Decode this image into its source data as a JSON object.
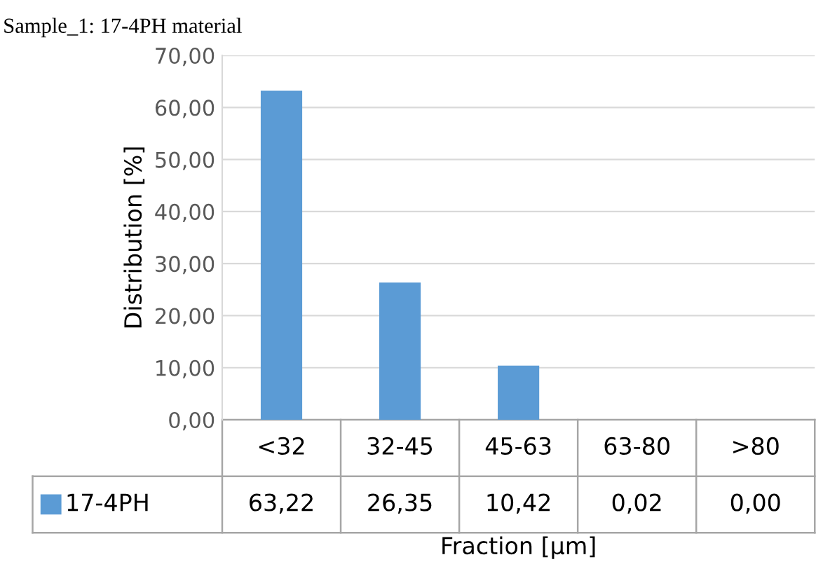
{
  "chart_data": {
    "type": "bar",
    "title": "Sample_1: 17-4PH material",
    "xlabel": "Fraction [µm]",
    "ylabel": "Distribution [%]",
    "categories": [
      "<32",
      "32-45",
      "45-63",
      "63-80",
      ">80"
    ],
    "series": [
      {
        "name": "17-4PH",
        "color": "#5b9bd5",
        "values": [
          63.22,
          26.35,
          10.42,
          0.02,
          0.0
        ],
        "value_labels": [
          "63,22",
          "26,35",
          "10,42",
          "0,02",
          "0,00"
        ]
      }
    ],
    "ylim": [
      0,
      70
    ],
    "yticks": [
      {
        "value": 0,
        "label": "0,00"
      },
      {
        "value": 10,
        "label": "10,00"
      },
      {
        "value": 20,
        "label": "20,00"
      },
      {
        "value": 30,
        "label": "30,00"
      },
      {
        "value": 40,
        "label": "40,00"
      },
      {
        "value": 50,
        "label": "50,00"
      },
      {
        "value": 60,
        "label": "60,00"
      },
      {
        "value": 70,
        "label": "70,00"
      }
    ],
    "grid": "y",
    "legend": "bottom"
  }
}
